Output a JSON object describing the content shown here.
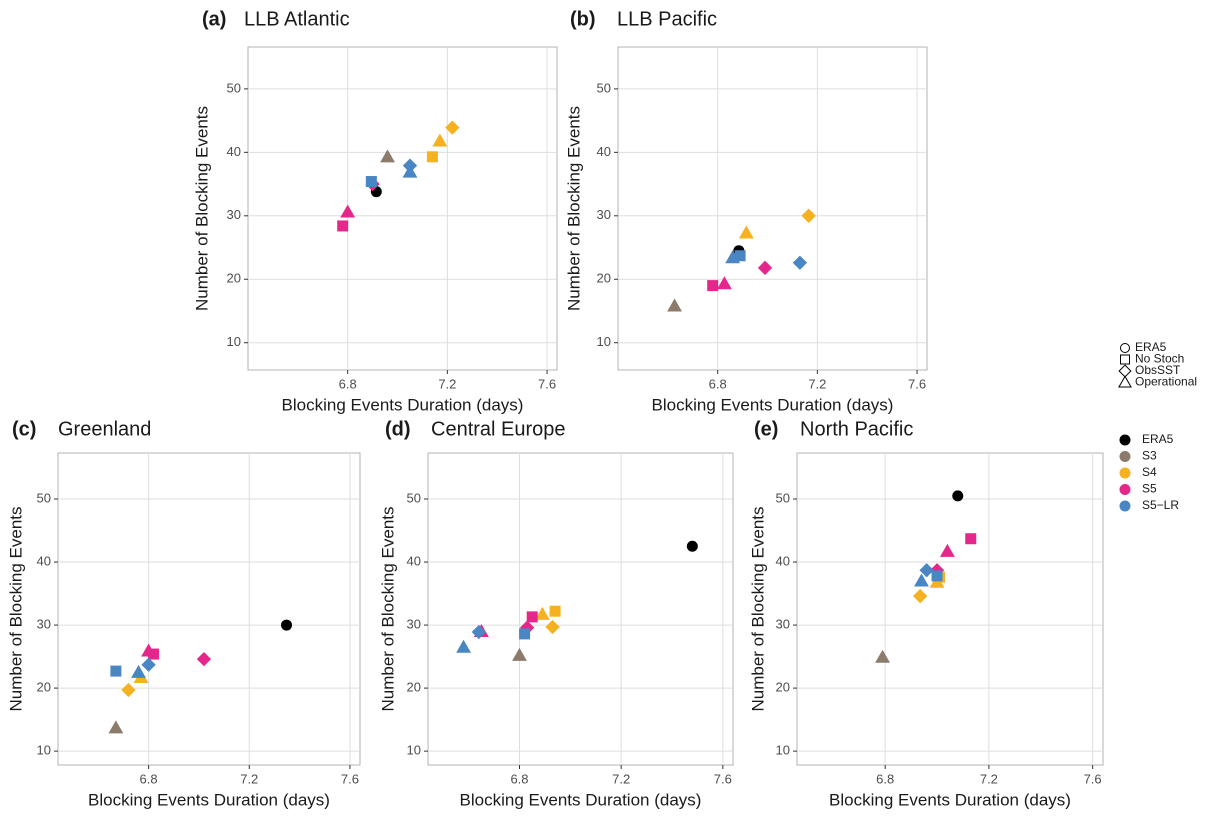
{
  "chart_data": [
    {
      "type": "scatter",
      "tag": "(a)",
      "title": "LLB Atlantic",
      "x_label": "Blocking Events Duration (days)",
      "y_label": "Number of Blocking Events",
      "xlim": [
        6.4,
        7.64
      ],
      "ylim": [
        5.7,
        56.6
      ],
      "xticks": [
        6.8,
        7.2,
        7.6
      ],
      "yticks": [
        10,
        20,
        30,
        40,
        50
      ],
      "grid": true,
      "x": [
        6.915,
        6.96,
        7.14,
        7.17,
        7.22,
        6.78,
        6.8,
        6.9,
        6.895,
        7.05,
        7.05
      ],
      "y": [
        33.8,
        39.3,
        39.3,
        41.8,
        43.9,
        28.4,
        30.6,
        35,
        35.4,
        37.9,
        36.9
      ],
      "colors": [
        "#000000",
        "#8c7b6b",
        "#f5b120",
        "#f5b120",
        "#f5b120",
        "#e5268b",
        "#e5268b",
        "#e5268b",
        "#4a85c4",
        "#4a85c4",
        "#4a85c4"
      ],
      "shapes": [
        "circle",
        "triangle",
        "square",
        "triangle",
        "diamond",
        "square",
        "triangle",
        "diamond",
        "square",
        "diamond",
        "triangle"
      ]
    },
    {
      "type": "scatter",
      "tag": "(b)",
      "title": "LLB Pacific",
      "x_label": "Blocking Events Duration (days)",
      "y_label": "Number of Blocking Events",
      "xlim": [
        6.4,
        7.64
      ],
      "ylim": [
        5.7,
        56.6
      ],
      "xticks": [
        6.8,
        7.2,
        7.6
      ],
      "yticks": [
        10,
        20,
        30,
        40,
        50
      ],
      "grid": true,
      "x": [
        6.885,
        6.627,
        6.915,
        7.165,
        6.78,
        6.827,
        6.99,
        7.13,
        6.89,
        6.86
      ],
      "y": [
        24.5,
        15.8,
        27.3,
        30.0,
        19.0,
        19.3,
        21.8,
        22.6,
        23.7,
        23.4
      ],
      "colors": [
        "#000000",
        "#8c7b6b",
        "#f5b120",
        "#f5b120",
        "#e5268b",
        "#e5268b",
        "#e5268b",
        "#4a85c4",
        "#4a85c4",
        "#4a85c4"
      ],
      "shapes": [
        "circle",
        "triangle",
        "triangle",
        "diamond",
        "square",
        "triangle",
        "diamond",
        "diamond",
        "square",
        "triangle"
      ]
    },
    {
      "type": "scatter",
      "tag": "(c)",
      "title": "Greenland",
      "x_label": "Blocking Events Duration (days)",
      "y_label": "Number of Blocking Events",
      "xlim": [
        6.44,
        7.64
      ],
      "ylim": [
        7.8,
        57.3
      ],
      "xticks": [
        6.8,
        7.2,
        7.6
      ],
      "yticks": [
        10,
        20,
        30,
        40,
        50
      ],
      "grid": true,
      "x": [
        7.348,
        6.67,
        6.72,
        6.77,
        6.8,
        6.82,
        7.02,
        6.67,
        6.76,
        6.8
      ],
      "y": [
        30.0,
        13.7,
        19.7,
        21.7,
        25.9,
        25.4,
        24.6,
        22.7,
        22.5,
        23.7
      ],
      "colors": [
        "#000000",
        "#8c7b6b",
        "#f5b120",
        "#f5b120",
        "#e5268b",
        "#e5268b",
        "#e5268b",
        "#4a85c4",
        "#4a85c4",
        "#4a85c4"
      ],
      "shapes": [
        "circle",
        "triangle",
        "diamond",
        "triangle",
        "triangle",
        "square",
        "diamond",
        "square",
        "triangle",
        "diamond"
      ]
    },
    {
      "type": "scatter",
      "tag": "(d)",
      "title": "Central Europe",
      "x_label": "Blocking Events Duration (days)",
      "y_label": "Number of Blocking Events",
      "xlim": [
        6.44,
        7.64
      ],
      "ylim": [
        7.8,
        57.3
      ],
      "xticks": [
        6.8,
        7.2,
        7.6
      ],
      "yticks": [
        10,
        20,
        30,
        40,
        50
      ],
      "grid": true,
      "x": [
        7.48,
        6.8,
        6.89,
        6.94,
        6.93,
        6.65,
        6.85,
        6.83,
        6.58,
        6.64,
        6.82
      ],
      "y": [
        42.5,
        25.2,
        31.7,
        32.2,
        29.7,
        29.0,
        31.3,
        29.6,
        26.5,
        28.9,
        28.6
      ],
      "colors": [
        "#000000",
        "#8c7b6b",
        "#f5b120",
        "#f5b120",
        "#f5b120",
        "#e5268b",
        "#e5268b",
        "#e5268b",
        "#4a85c4",
        "#4a85c4",
        "#4a85c4"
      ],
      "shapes": [
        "circle",
        "triangle",
        "triangle",
        "square",
        "diamond",
        "triangle",
        "square",
        "diamond",
        "triangle",
        "diamond",
        "square"
      ]
    },
    {
      "type": "scatter",
      "tag": "(e)",
      "title": "North Pacific",
      "x_label": "Blocking Events Duration (days)",
      "y_label": "Number of Blocking Events",
      "xlim": [
        6.46,
        7.64
      ],
      "ylim": [
        7.8,
        57.3
      ],
      "xticks": [
        6.8,
        7.2,
        7.6
      ],
      "yticks": [
        10,
        20,
        30,
        40,
        50
      ],
      "grid": true,
      "x": [
        7.08,
        6.79,
        6.935,
        7.0,
        7.01,
        7.0,
        7.04,
        7.13,
        6.94,
        6.96,
        7.0
      ],
      "y": [
        50.5,
        24.9,
        34.6,
        36.8,
        37.6,
        38.7,
        41.7,
        43.7,
        37.0,
        38.7,
        37.8
      ],
      "colors": [
        "#000000",
        "#8c7b6b",
        "#f5b120",
        "#f5b120",
        "#f5b120",
        "#e5268b",
        "#e5268b",
        "#e5268b",
        "#4a85c4",
        "#4a85c4",
        "#4a85c4"
      ],
      "shapes": [
        "circle",
        "triangle",
        "diamond",
        "triangle",
        "square",
        "diamond",
        "triangle",
        "square",
        "triangle",
        "diamond",
        "square"
      ]
    }
  ],
  "shape_legend": [
    {
      "label": "ERA5",
      "shape": "circle"
    },
    {
      "label": "No Stoch",
      "shape": "square"
    },
    {
      "label": "ObsSST",
      "shape": "diamond"
    },
    {
      "label": "Operational",
      "shape": "triangle"
    }
  ],
  "color_legend": [
    {
      "label": "ERA5",
      "color": "#000000"
    },
    {
      "label": "S3",
      "color": "#8c7b6b"
    },
    {
      "label": "S4",
      "color": "#f5b120"
    },
    {
      "label": "S5",
      "color": "#e5268b"
    },
    {
      "label": "S5−LR",
      "color": "#4a85c4"
    }
  ]
}
